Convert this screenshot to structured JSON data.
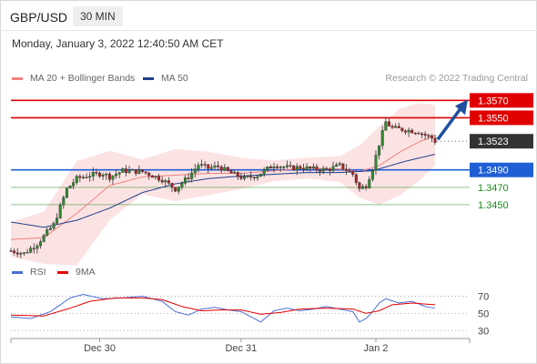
{
  "header": {
    "symbol": "GBP/USD",
    "timeframe": "30 MIN",
    "datetime": "Monday, January 3, 2022 12:40:50 AM CET"
  },
  "legend": {
    "bollinger": {
      "label": "MA 20 + Bollinger Bands",
      "color": "#f08080"
    },
    "ma50": {
      "label": "MA 50",
      "color": "#1f3f8a"
    },
    "research": "Research © 2022 Trading Central"
  },
  "rsi_legend": {
    "rsi": {
      "label": "RSI",
      "color": "#4a6fd6"
    },
    "ma": {
      "label": "9MA",
      "color": "#e00000"
    }
  },
  "chart_data": [
    {
      "type": "candlestick",
      "title": "GBP/USD",
      "timeframe": "30 MIN",
      "x_ticks": [
        "Dec 30",
        "Dec 31",
        "Jan 2"
      ],
      "ylim": [
        1.3385,
        1.3585
      ],
      "last_price": {
        "value": "1.3523",
        "color": "#333333"
      },
      "levels": [
        {
          "value": "1.3570",
          "color": "#e00000",
          "style": "line",
          "kind": "resistance"
        },
        {
          "value": "1.3550",
          "color": "#e00000",
          "style": "line",
          "kind": "resistance"
        },
        {
          "value": "1.3490",
          "color": "#1f5fd6",
          "style": "line",
          "kind": "pivot"
        },
        {
          "value": "1.3470",
          "color": "#1a8a1a",
          "style": "line",
          "kind": "support"
        },
        {
          "value": "1.3450",
          "color": "#1a8a1a",
          "style": "line",
          "kind": "support"
        }
      ],
      "arrow": {
        "direction": "up",
        "from": 1.3523,
        "to": 1.357,
        "color": "#1f4fa0"
      },
      "close_path": [
        [
          0,
          1.3397
        ],
        [
          4,
          1.3394
        ],
        [
          8,
          1.3405
        ],
        [
          13,
          1.3427
        ],
        [
          17,
          1.3468
        ],
        [
          20,
          1.348
        ],
        [
          24,
          1.3484
        ],
        [
          28,
          1.3486
        ],
        [
          30,
          1.3482
        ],
        [
          34,
          1.3489
        ],
        [
          40,
          1.3488
        ],
        [
          46,
          1.3479
        ],
        [
          50,
          1.3468
        ],
        [
          54,
          1.3482
        ],
        [
          57,
          1.3496
        ],
        [
          60,
          1.3492
        ],
        [
          63,
          1.3494
        ],
        [
          67,
          1.3486
        ],
        [
          71,
          1.348
        ],
        [
          75,
          1.3484
        ],
        [
          80,
          1.3496
        ],
        [
          85,
          1.3492
        ],
        [
          88,
          1.3493
        ],
        [
          92,
          1.3491
        ],
        [
          96,
          1.349
        ],
        [
          100,
          1.3495
        ],
        [
          104,
          1.3485
        ],
        [
          106,
          1.3468
        ],
        [
          108,
          1.3472
        ],
        [
          110,
          1.3492
        ],
        [
          112,
          1.352
        ],
        [
          114,
          1.3545
        ],
        [
          116,
          1.3538
        ],
        [
          120,
          1.3536
        ],
        [
          124,
          1.3534
        ],
        [
          126,
          1.353
        ],
        [
          128,
          1.3527
        ],
        [
          129,
          1.3523
        ]
      ],
      "ma20_path": [
        [
          0,
          1.341
        ],
        [
          10,
          1.3412
        ],
        [
          20,
          1.344
        ],
        [
          30,
          1.3472
        ],
        [
          40,
          1.3482
        ],
        [
          50,
          1.3484
        ],
        [
          60,
          1.3486
        ],
        [
          70,
          1.3486
        ],
        [
          80,
          1.3489
        ],
        [
          90,
          1.3492
        ],
        [
          100,
          1.3491
        ],
        [
          106,
          1.3488
        ],
        [
          112,
          1.3495
        ],
        [
          118,
          1.351
        ],
        [
          124,
          1.3522
        ],
        [
          129,
          1.353
        ]
      ],
      "band_width_path": [
        [
          0,
          0.002
        ],
        [
          10,
          0.003
        ],
        [
          20,
          0.006
        ],
        [
          30,
          0.004
        ],
        [
          40,
          0.002
        ],
        [
          50,
          0.003
        ],
        [
          60,
          0.0025
        ],
        [
          70,
          0.0018
        ],
        [
          80,
          0.0012
        ],
        [
          90,
          0.0012
        ],
        [
          100,
          0.0015
        ],
        [
          106,
          0.003
        ],
        [
          112,
          0.0045
        ],
        [
          118,
          0.005
        ],
        [
          124,
          0.0045
        ],
        [
          129,
          0.0035
        ]
      ],
      "ma50_path": [
        [
          0,
          1.343
        ],
        [
          10,
          1.3424
        ],
        [
          20,
          1.3432
        ],
        [
          30,
          1.3446
        ],
        [
          40,
          1.3464
        ],
        [
          50,
          1.3474
        ],
        [
          60,
          1.348
        ],
        [
          70,
          1.3483
        ],
        [
          80,
          1.3485
        ],
        [
          90,
          1.3487
        ],
        [
          100,
          1.3487
        ],
        [
          110,
          1.3489
        ],
        [
          120,
          1.35
        ],
        [
          129,
          1.3508
        ]
      ]
    },
    {
      "type": "line",
      "title": "RSI",
      "y_ticks": [
        "70",
        "50",
        "30"
      ],
      "ylim": [
        25,
        80
      ],
      "series": [
        {
          "name": "RSI",
          "color": "#4a6fd6",
          "path": [
            [
              0,
              46
            ],
            [
              6,
              44
            ],
            [
              12,
              52
            ],
            [
              18,
              68
            ],
            [
              22,
              72
            ],
            [
              28,
              67
            ],
            [
              34,
              68
            ],
            [
              40,
              70
            ],
            [
              46,
              64
            ],
            [
              50,
              52
            ],
            [
              54,
              48
            ],
            [
              58,
              55
            ],
            [
              62,
              57
            ],
            [
              66,
              54
            ],
            [
              70,
              52
            ],
            [
              74,
              44
            ],
            [
              76,
              40
            ],
            [
              80,
              53
            ],
            [
              84,
              56
            ],
            [
              88,
              53
            ],
            [
              92,
              55
            ],
            [
              96,
              58
            ],
            [
              100,
              55
            ],
            [
              104,
              52
            ],
            [
              106,
              40
            ],
            [
              108,
              44
            ],
            [
              110,
              52
            ],
            [
              112,
              62
            ],
            [
              114,
              67
            ],
            [
              118,
              62
            ],
            [
              122,
              64
            ],
            [
              126,
              58
            ],
            [
              129,
              56
            ]
          ]
        },
        {
          "name": "9MA",
          "color": "#e00000",
          "path": [
            [
              0,
              48
            ],
            [
              10,
              47
            ],
            [
              18,
              56
            ],
            [
              24,
              64
            ],
            [
              32,
              68
            ],
            [
              40,
              68
            ],
            [
              46,
              66
            ],
            [
              52,
              58
            ],
            [
              58,
              53
            ],
            [
              64,
              54
            ],
            [
              70,
              54
            ],
            [
              76,
              49
            ],
            [
              82,
              51
            ],
            [
              88,
              55
            ],
            [
              96,
              56
            ],
            [
              104,
              55
            ],
            [
              108,
              50
            ],
            [
              112,
              53
            ],
            [
              116,
              60
            ],
            [
              122,
              62
            ],
            [
              129,
              60
            ]
          ]
        }
      ]
    }
  ]
}
